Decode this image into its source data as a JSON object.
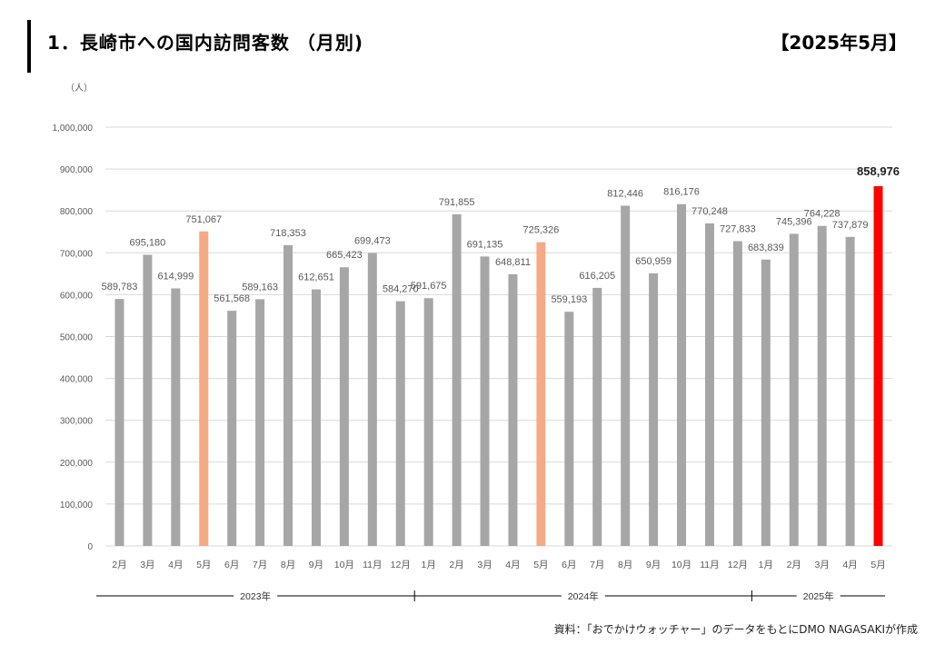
{
  "header": {
    "title": "1．長崎市への国内訪問客数 （月別)",
    "period": "【2025年5月】"
  },
  "source_note": "資料：「おでかけウォッチャー」のデータをもとにDMO NAGASAKIが作成",
  "colors": {
    "bar_default": "#a6a6a6",
    "bar_may": "#f4aa85",
    "bar_latest": "#ff0000",
    "grid": "#d9d9d9",
    "axis_text": "#595959"
  },
  "chart_data": {
    "type": "bar",
    "title": "1．長崎市への国内訪問客数 （月別)",
    "ylabel": "（人）",
    "xlabel": "",
    "ylim": [
      0,
      1000000
    ],
    "y_ticks": [
      0,
      100000,
      200000,
      300000,
      400000,
      500000,
      600000,
      700000,
      800000,
      900000,
      1000000
    ],
    "y_tick_labels": [
      "0",
      "100,000",
      "200,000",
      "300,000",
      "400,000",
      "500,000",
      "600,000",
      "700,000",
      "800,000",
      "900,000",
      "1,000,000"
    ],
    "grid": true,
    "categories": [
      "2月",
      "3月",
      "4月",
      "5月",
      "6月",
      "7月",
      "8月",
      "9月",
      "10月",
      "11月",
      "12月",
      "1月",
      "2月",
      "3月",
      "4月",
      "5月",
      "6月",
      "7月",
      "8月",
      "9月",
      "10月",
      "11月",
      "12月",
      "1月",
      "2月",
      "3月",
      "4月",
      "5月"
    ],
    "values": [
      589783,
      695180,
      614999,
      751067,
      561568,
      589163,
      718353,
      612651,
      665423,
      699473,
      584270,
      591675,
      791855,
      691135,
      648811,
      725326,
      559193,
      616205,
      812446,
      650959,
      816176,
      770248,
      727833,
      683839,
      745396,
      764228,
      737879,
      858976
    ],
    "value_labels": [
      "589,783",
      "695,180",
      "614,999",
      "751,067",
      "561,568",
      "589,163",
      "718,353",
      "612,651",
      "665,423",
      "699,473",
      "584,270",
      "591,675",
      "791,855",
      "691,135",
      "648,811",
      "725,326",
      "559,193",
      "616,205",
      "812,446",
      "650,959",
      "816,176",
      "770,248",
      "727,833",
      "683,839",
      "745,396",
      "764,228",
      "737,879",
      "858,976"
    ],
    "highlight": [
      "default",
      "default",
      "default",
      "may",
      "default",
      "default",
      "default",
      "default",
      "default",
      "default",
      "default",
      "default",
      "default",
      "default",
      "default",
      "may",
      "default",
      "default",
      "default",
      "default",
      "default",
      "default",
      "default",
      "default",
      "default",
      "default",
      "default",
      "latest"
    ],
    "year_groups": [
      {
        "label": "2023年",
        "start": 0,
        "end": 10
      },
      {
        "label": "2024年",
        "start": 11,
        "end": 22
      },
      {
        "label": "2025年",
        "start": 23,
        "end": 27
      }
    ]
  }
}
